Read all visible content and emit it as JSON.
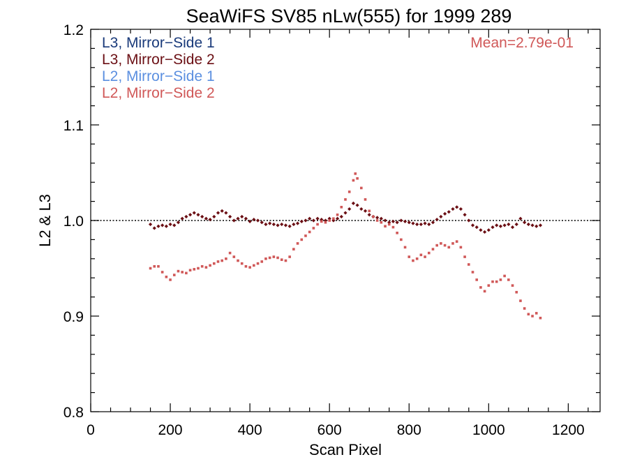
{
  "chart_data": {
    "type": "scatter",
    "title": "SeaWiFS SV85 nLw(555) for 1999 289",
    "xlabel": "Scan Pixel",
    "ylabel": "L2 & L3",
    "xlim": [
      0,
      1280
    ],
    "ylim": [
      0.8,
      1.2
    ],
    "x_ticks": [
      0,
      200,
      400,
      600,
      800,
      1000,
      1200
    ],
    "x_tick_labels": [
      "0",
      "200",
      "400",
      "600",
      "800",
      "1000",
      "1200"
    ],
    "y_ticks": [
      0.8,
      0.9,
      1.0,
      1.1,
      1.2
    ],
    "y_tick_labels": [
      "0.8",
      "0.9",
      "1.0",
      "1.1",
      "1.2"
    ],
    "reference_line": 1.0,
    "annotation": "Mean=2.79e-01",
    "legend_position": "top-left",
    "legend": [
      {
        "label": "L3, Mirror−Side 1",
        "color": "#1a3a7a"
      },
      {
        "label": "L3, Mirror−Side 2",
        "color": "#6b0f14"
      },
      {
        "label": "L2, Mirror−Side 1",
        "color": "#5b8fe0"
      },
      {
        "label": "L2, Mirror−Side 2",
        "color": "#d05858"
      }
    ],
    "series": [
      {
        "color": "#6b0f14",
        "marker": "diamond",
        "points": [
          [
            150,
            0.996
          ],
          [
            160,
            0.992
          ],
          [
            170,
            0.994
          ],
          [
            180,
            0.995
          ],
          [
            190,
            0.994
          ],
          [
            200,
            0.996
          ],
          [
            210,
            0.995
          ],
          [
            220,
            0.998
          ],
          [
            230,
            1.002
          ],
          [
            240,
            1.004
          ],
          [
            250,
            1.006
          ],
          [
            260,
            1.008
          ],
          [
            270,
            1.006
          ],
          [
            280,
            1.004
          ],
          [
            290,
            1.002
          ],
          [
            300,
            1.001
          ],
          [
            310,
            1.004
          ],
          [
            320,
            1.008
          ],
          [
            330,
            1.01
          ],
          [
            340,
            1.008
          ],
          [
            350,
            1.004
          ],
          [
            360,
            1.0
          ],
          [
            370,
            1.002
          ],
          [
            380,
            1.004
          ],
          [
            390,
            1.002
          ],
          [
            400,
            0.999
          ],
          [
            410,
            1.001
          ],
          [
            420,
            1.0
          ],
          [
            430,
            0.998
          ],
          [
            440,
            0.996
          ],
          [
            450,
            0.997
          ],
          [
            460,
            0.996
          ],
          [
            470,
            0.995
          ],
          [
            480,
            0.996
          ],
          [
            490,
            0.995
          ],
          [
            500,
            0.994
          ],
          [
            510,
            0.996
          ],
          [
            520,
            0.997
          ],
          [
            530,
            0.999
          ],
          [
            540,
            1.0
          ],
          [
            550,
            1.002
          ],
          [
            560,
            1.0
          ],
          [
            570,
            1.002
          ],
          [
            580,
            1.001
          ],
          [
            590,
            1.0
          ],
          [
            600,
            1.002
          ],
          [
            610,
            1.0
          ],
          [
            620,
            1.002
          ],
          [
            630,
            1.004
          ],
          [
            640,
            1.008
          ],
          [
            650,
            1.012
          ],
          [
            660,
            1.018
          ],
          [
            670,
            1.016
          ],
          [
            680,
            1.012
          ],
          [
            690,
            1.01
          ],
          [
            700,
            1.006
          ],
          [
            710,
            1.004
          ],
          [
            720,
            1.003
          ],
          [
            730,
            1.002
          ],
          [
            740,
            1.0
          ],
          [
            750,
            0.998
          ],
          [
            760,
            0.999
          ],
          [
            770,
            0.998
          ],
          [
            780,
            1.0
          ],
          [
            790,
            0.999
          ],
          [
            800,
            0.998
          ],
          [
            810,
            0.997
          ],
          [
            820,
            0.996
          ],
          [
            830,
            0.996
          ],
          [
            840,
            0.997
          ],
          [
            850,
            0.996
          ],
          [
            860,
            0.998
          ],
          [
            870,
            1.001
          ],
          [
            880,
            1.004
          ],
          [
            890,
            1.007
          ],
          [
            900,
            1.009
          ],
          [
            910,
            1.012
          ],
          [
            920,
            1.014
          ],
          [
            930,
            1.012
          ],
          [
            940,
            1.006
          ],
          [
            950,
            1.0
          ],
          [
            960,
            0.995
          ],
          [
            970,
            0.993
          ],
          [
            980,
            0.99
          ],
          [
            990,
            0.988
          ],
          [
            1000,
            0.99
          ],
          [
            1010,
            0.993
          ],
          [
            1020,
            0.995
          ],
          [
            1030,
            0.994
          ],
          [
            1040,
            0.995
          ],
          [
            1050,
            0.996
          ],
          [
            1060,
            0.993
          ],
          [
            1070,
            0.996
          ],
          [
            1080,
            1.002
          ],
          [
            1090,
            0.998
          ],
          [
            1100,
            0.996
          ],
          [
            1110,
            0.995
          ],
          [
            1120,
            0.994
          ],
          [
            1130,
            0.995
          ]
        ]
      },
      {
        "color": "#d05858",
        "marker": "square",
        "points": [
          [
            150,
            0.95
          ],
          [
            160,
            0.952
          ],
          [
            170,
            0.952
          ],
          [
            180,
            0.946
          ],
          [
            190,
            0.941
          ],
          [
            200,
            0.938
          ],
          [
            210,
            0.943
          ],
          [
            220,
            0.947
          ],
          [
            230,
            0.946
          ],
          [
            240,
            0.945
          ],
          [
            250,
            0.948
          ],
          [
            260,
            0.949
          ],
          [
            270,
            0.95
          ],
          [
            280,
            0.952
          ],
          [
            290,
            0.951
          ],
          [
            300,
            0.953
          ],
          [
            310,
            0.955
          ],
          [
            320,
            0.957
          ],
          [
            330,
            0.958
          ],
          [
            340,
            0.96
          ],
          [
            350,
            0.966
          ],
          [
            360,
            0.962
          ],
          [
            370,
            0.958
          ],
          [
            380,
            0.955
          ],
          [
            390,
            0.952
          ],
          [
            400,
            0.951
          ],
          [
            410,
            0.953
          ],
          [
            420,
            0.955
          ],
          [
            430,
            0.957
          ],
          [
            440,
            0.96
          ],
          [
            450,
            0.961
          ],
          [
            460,
            0.962
          ],
          [
            470,
            0.961
          ],
          [
            480,
            0.959
          ],
          [
            490,
            0.958
          ],
          [
            500,
            0.962
          ],
          [
            510,
            0.97
          ],
          [
            520,
            0.976
          ],
          [
            530,
            0.98
          ],
          [
            540,
            0.984
          ],
          [
            550,
            0.988
          ],
          [
            560,
            0.992
          ],
          [
            570,
            0.996
          ],
          [
            580,
            0.999
          ],
          [
            590,
            0.998
          ],
          [
            600,
            1.0
          ],
          [
            610,
            1.002
          ],
          [
            620,
            1.006
          ],
          [
            630,
            1.014
          ],
          [
            640,
            1.022
          ],
          [
            650,
            1.03
          ],
          [
            660,
            1.042
          ],
          [
            665,
            1.049
          ],
          [
            670,
            1.044
          ],
          [
            680,
            1.034
          ],
          [
            690,
            1.022
          ],
          [
            700,
            1.01
          ],
          [
            710,
            1.004
          ],
          [
            720,
            1.0
          ],
          [
            730,
            0.998
          ],
          [
            740,
            0.994
          ],
          [
            750,
            0.996
          ],
          [
            760,
            0.993
          ],
          [
            770,
            0.987
          ],
          [
            780,
            0.98
          ],
          [
            790,
            0.972
          ],
          [
            800,
            0.962
          ],
          [
            810,
            0.958
          ],
          [
            820,
            0.96
          ],
          [
            830,
            0.964
          ],
          [
            840,
            0.962
          ],
          [
            850,
            0.966
          ],
          [
            860,
            0.97
          ],
          [
            870,
            0.974
          ],
          [
            880,
            0.976
          ],
          [
            890,
            0.974
          ],
          [
            900,
            0.972
          ],
          [
            910,
            0.976
          ],
          [
            920,
            0.978
          ],
          [
            930,
            0.972
          ],
          [
            940,
            0.962
          ],
          [
            950,
            0.954
          ],
          [
            960,
            0.946
          ],
          [
            970,
            0.938
          ],
          [
            980,
            0.93
          ],
          [
            990,
            0.926
          ],
          [
            1000,
            0.932
          ],
          [
            1010,
            0.936
          ],
          [
            1020,
            0.936
          ],
          [
            1030,
            0.938
          ],
          [
            1040,
            0.942
          ],
          [
            1050,
            0.938
          ],
          [
            1060,
            0.932
          ],
          [
            1070,
            0.925
          ],
          [
            1080,
            0.916
          ],
          [
            1090,
            0.908
          ],
          [
            1100,
            0.902
          ],
          [
            1110,
            0.9
          ],
          [
            1120,
            0.903
          ],
          [
            1130,
            0.898
          ]
        ]
      }
    ]
  }
}
